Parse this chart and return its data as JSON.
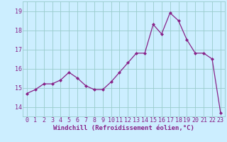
{
  "x": [
    0,
    1,
    2,
    3,
    4,
    5,
    6,
    7,
    8,
    9,
    10,
    11,
    12,
    13,
    14,
    15,
    16,
    17,
    18,
    19,
    20,
    21,
    22,
    23
  ],
  "y": [
    14.7,
    14.9,
    15.2,
    15.2,
    15.4,
    15.8,
    15.5,
    15.1,
    14.9,
    14.9,
    15.3,
    15.8,
    16.3,
    16.8,
    16.8,
    18.3,
    17.8,
    18.9,
    18.5,
    17.5,
    16.8,
    16.8,
    16.5,
    13.7
  ],
  "line_color": "#882288",
  "marker": "D",
  "markersize": 2.0,
  "linewidth": 0.9,
  "bg_color": "#cceeff",
  "grid_color": "#99cccc",
  "xlabel": "Windchill (Refroidissement éolien,°C)",
  "xlabel_color": "#882288",
  "tick_color": "#882288",
  "ylim": [
    13.5,
    19.5
  ],
  "xlim": [
    -0.5,
    23.5
  ],
  "yticks": [
    14,
    15,
    16,
    17,
    18,
    19
  ],
  "xticks": [
    0,
    1,
    2,
    3,
    4,
    5,
    6,
    7,
    8,
    9,
    10,
    11,
    12,
    13,
    14,
    15,
    16,
    17,
    18,
    19,
    20,
    21,
    22,
    23
  ],
  "label_fontsize": 6.5,
  "tick_fontsize": 6.0,
  "xlabel_fontsize": 6.5
}
